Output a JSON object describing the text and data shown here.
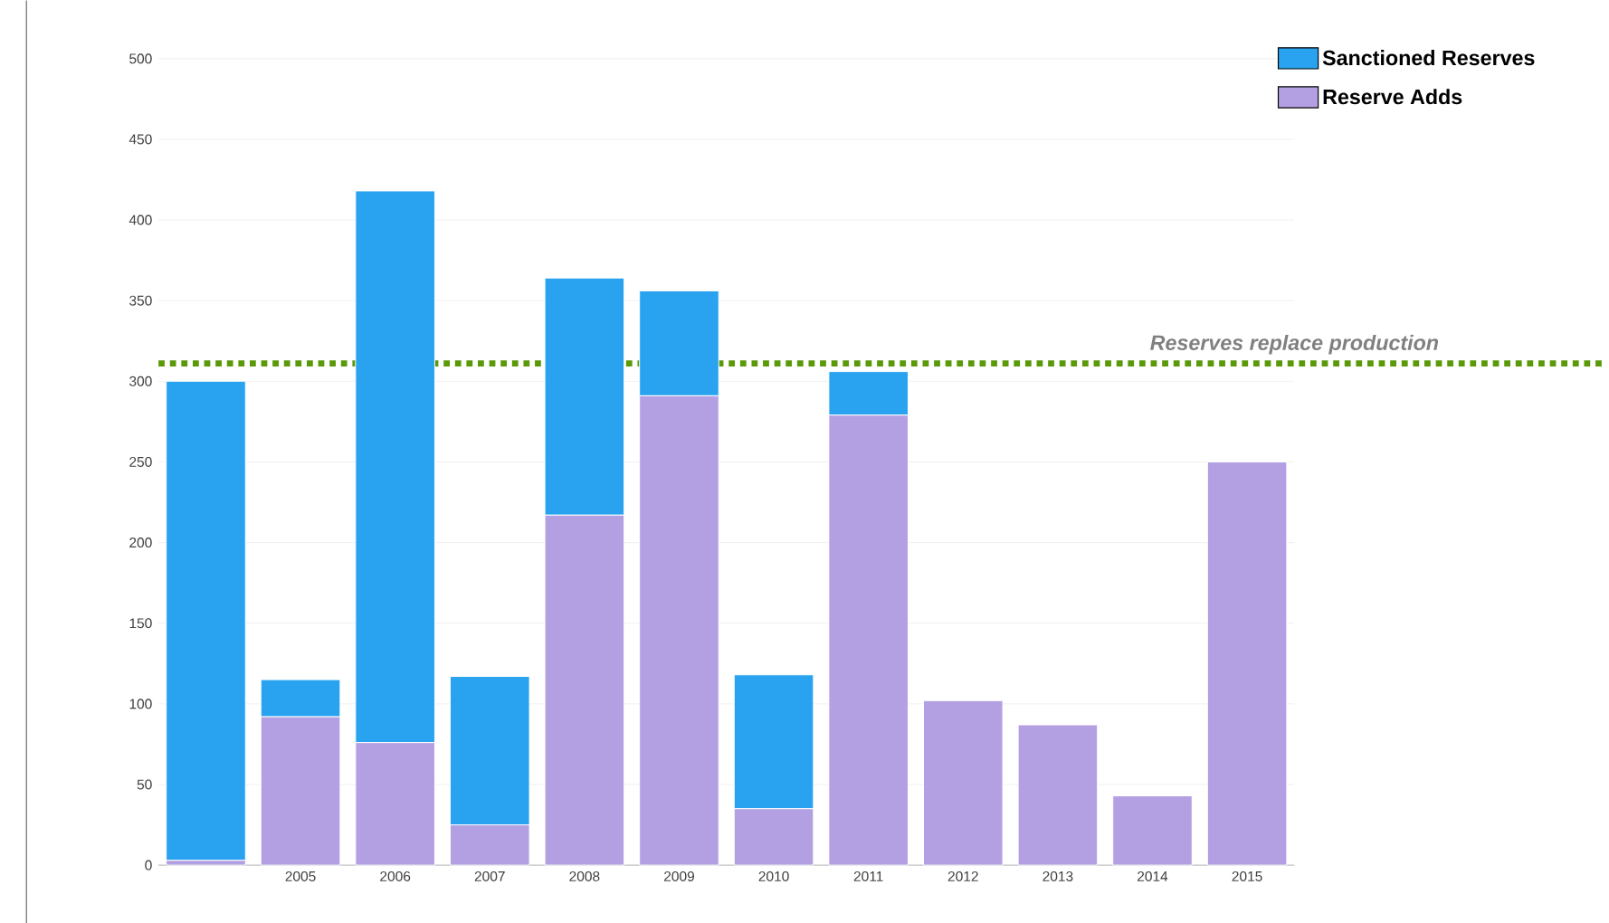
{
  "chart_data": {
    "type": "bar",
    "stacked": true,
    "categories": [
      null,
      "2005",
      "2006",
      "2007",
      "2008",
      "2009",
      "2010",
      "2011",
      "2012",
      "2013",
      "2014",
      "2015"
    ],
    "series": [
      {
        "name": "Reserve Adds",
        "color": "#b3a0e2",
        "values": [
          3,
          92,
          76,
          25,
          217,
          291,
          35,
          279,
          102,
          87,
          43,
          250
        ]
      },
      {
        "name": "Sanctioned Reserves",
        "color": "#29a3ef",
        "values": [
          297,
          23,
          342,
          92,
          147,
          65,
          83,
          27,
          null,
          null,
          null,
          null
        ]
      }
    ],
    "ylim": [
      0,
      500
    ],
    "yticks": [
      0,
      50,
      100,
      150,
      200,
      250,
      300,
      350,
      400,
      450,
      500
    ],
    "grid": "y",
    "legend": "top right",
    "ref_lines": [
      {
        "axis": "y",
        "value": 311,
        "label": "Reserves replace production",
        "color": "#5a9a08",
        "line_style": "dotted"
      }
    ]
  }
}
